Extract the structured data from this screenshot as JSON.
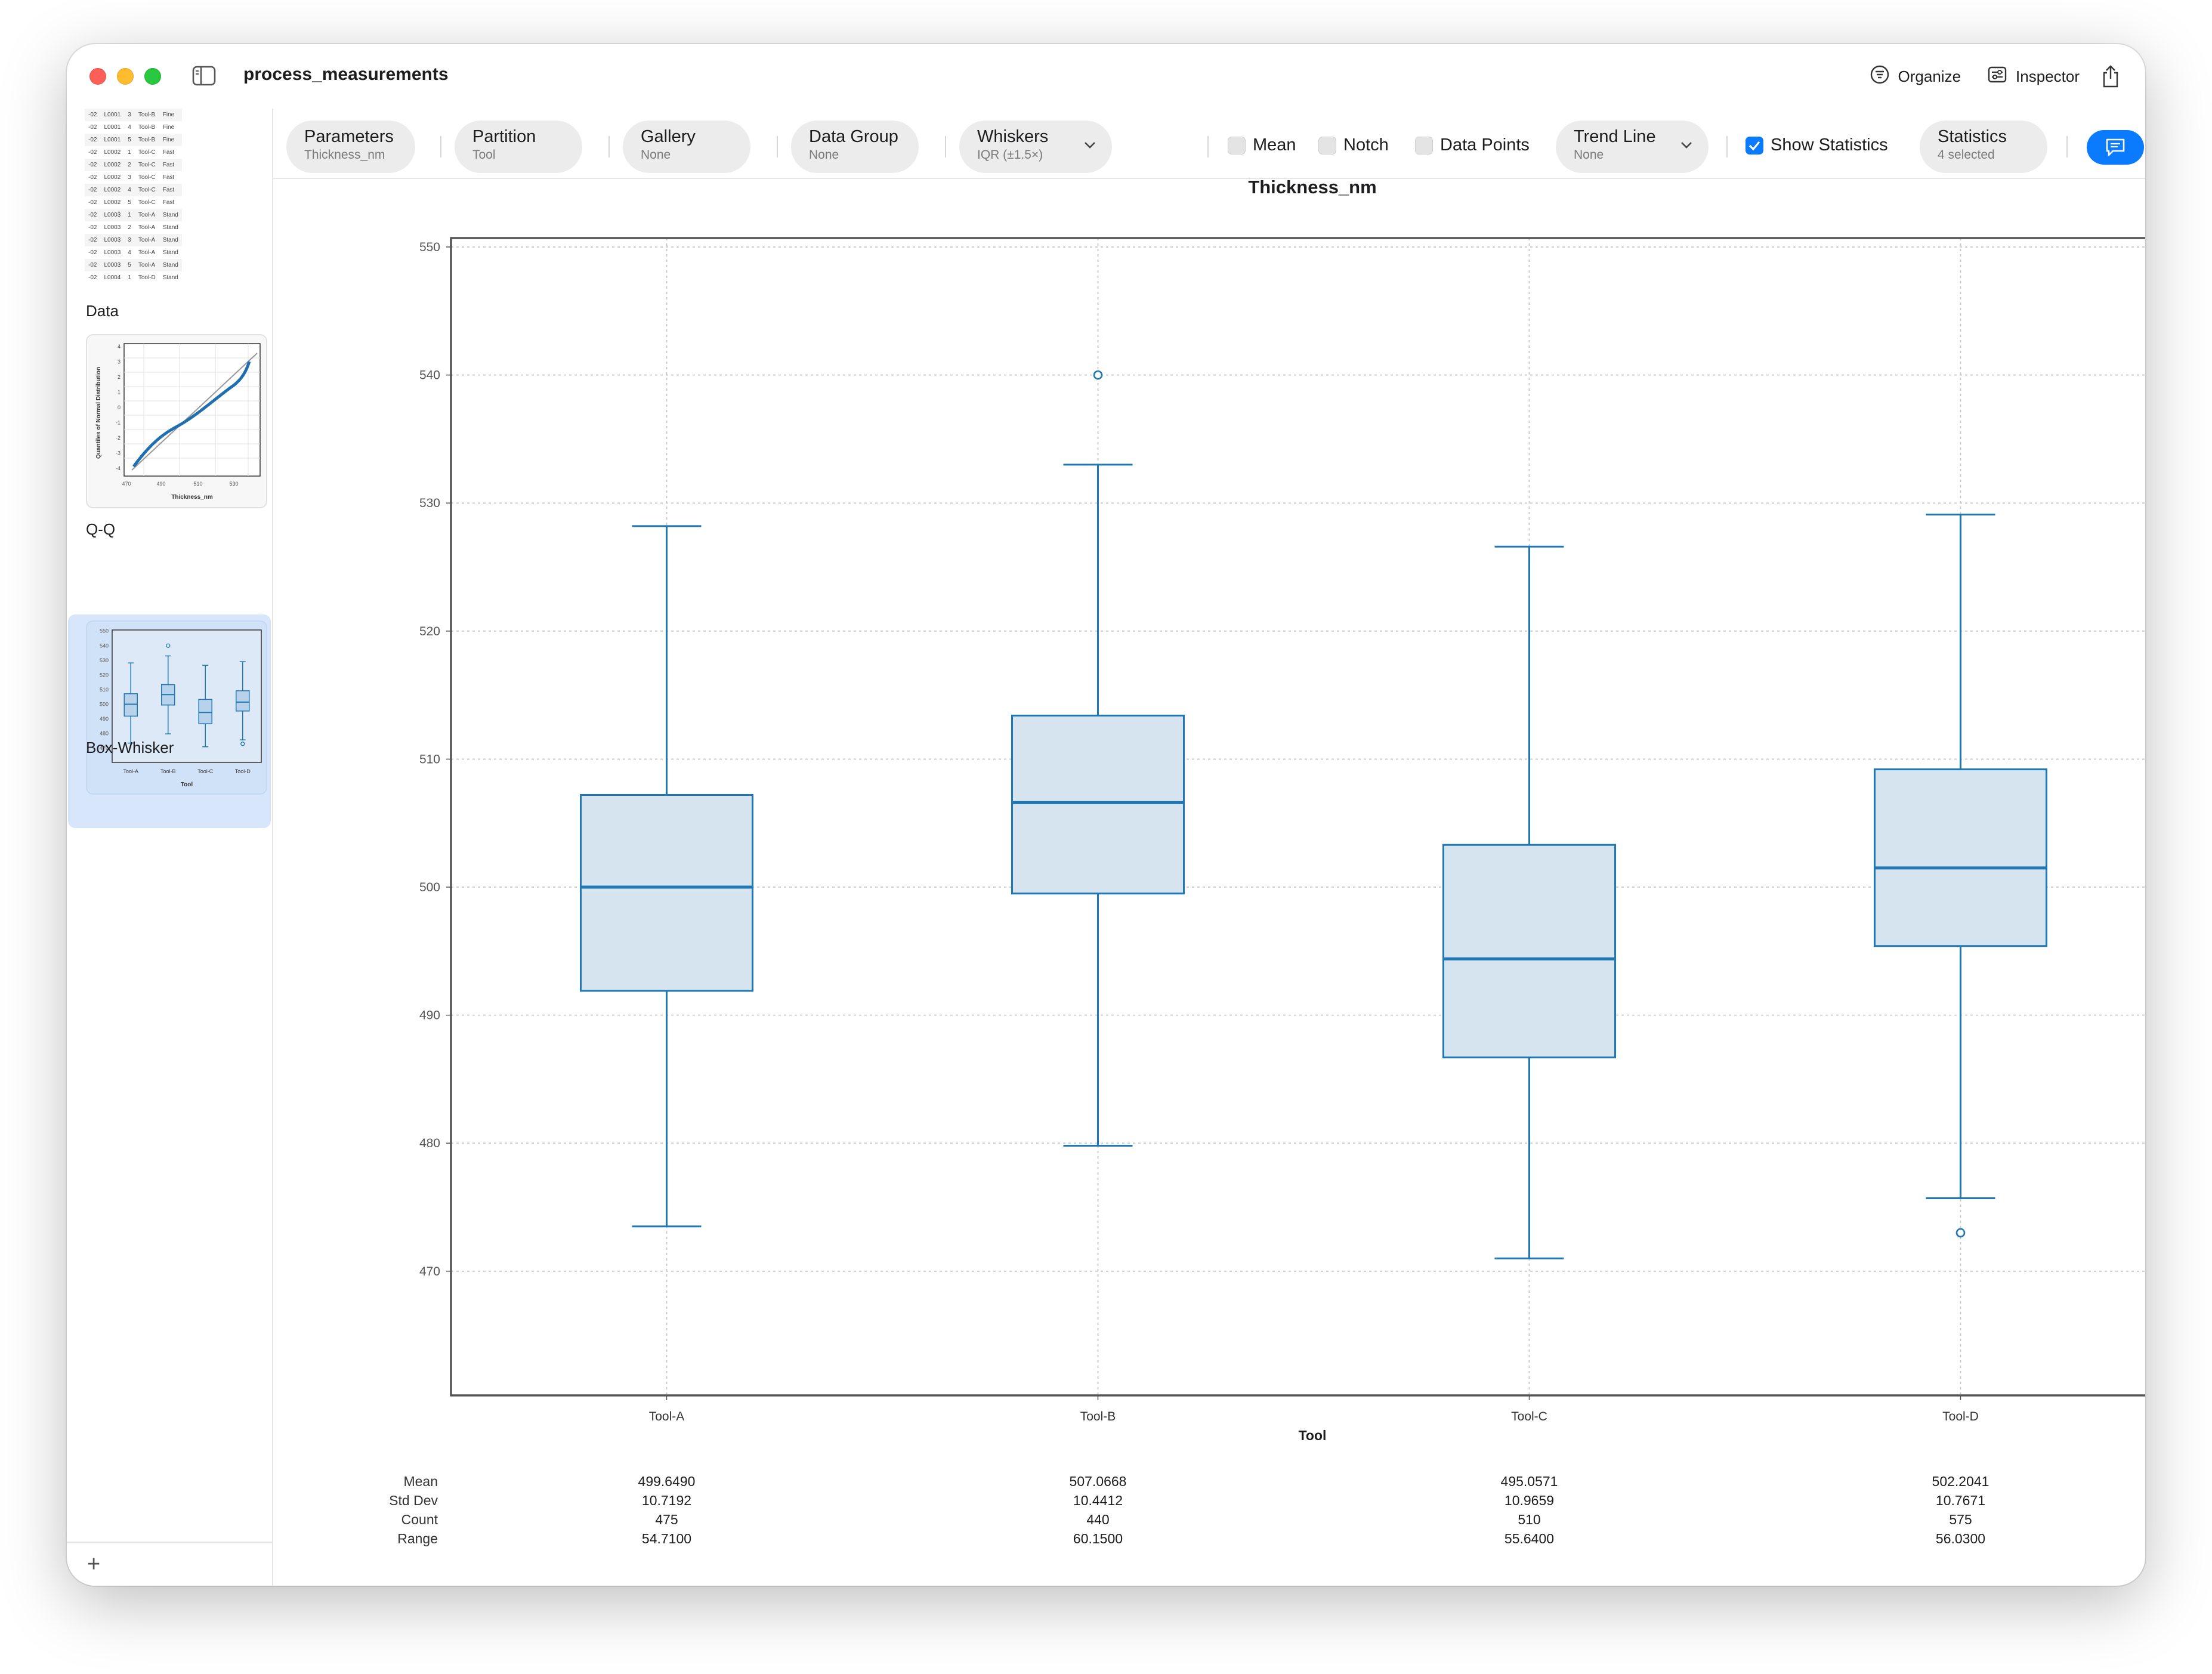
{
  "window": {
    "title": "process_measurements"
  },
  "titlebar": {
    "organize_label": "Organize",
    "inspector_label": "Inspector"
  },
  "sidebar": {
    "data_preview_rows": [
      [
        "-02",
        "L0001",
        "3",
        "Tool-B",
        "Fine"
      ],
      [
        "-02",
        "L0001",
        "4",
        "Tool-B",
        "Fine"
      ],
      [
        "-02",
        "L0001",
        "5",
        "Tool-B",
        "Fine"
      ],
      [
        "-02",
        "L0002",
        "1",
        "Tool-C",
        "Fast"
      ],
      [
        "-02",
        "L0002",
        "2",
        "Tool-C",
        "Fast"
      ],
      [
        "-02",
        "L0002",
        "3",
        "Tool-C",
        "Fast"
      ],
      [
        "-02",
        "L0002",
        "4",
        "Tool-C",
        "Fast"
      ],
      [
        "-02",
        "L0002",
        "5",
        "Tool-C",
        "Fast"
      ],
      [
        "-02",
        "L0003",
        "1",
        "Tool-A",
        "Stand"
      ],
      [
        "-02",
        "L0003",
        "2",
        "Tool-A",
        "Stand"
      ],
      [
        "-02",
        "L0003",
        "3",
        "Tool-A",
        "Stand"
      ],
      [
        "-02",
        "L0003",
        "4",
        "Tool-A",
        "Stand"
      ],
      [
        "-02",
        "L0003",
        "5",
        "Tool-A",
        "Stand"
      ],
      [
        "-02",
        "L0004",
        "1",
        "Tool-D",
        "Stand"
      ]
    ],
    "items": [
      {
        "label": "Data"
      },
      {
        "label": "Q-Q"
      },
      {
        "label": "Box-Whisker"
      }
    ],
    "add_label": "+",
    "qq_thumb": {
      "ylabel": "Quantiles of Normal Distribution",
      "xlabel": "Thickness_nm",
      "x_ticks": [
        "470",
        "490",
        "510",
        "530"
      ],
      "y_ticks": [
        "4",
        "3",
        "2",
        "1",
        "0",
        "-1",
        "-2",
        "-3",
        "-4"
      ]
    },
    "box_thumb": {
      "xlabel": "Tool",
      "y_ticks": [
        "550",
        "540",
        "530",
        "520",
        "510",
        "500",
        "490",
        "480",
        "470"
      ],
      "x_ticks": [
        "Tool-A",
        "Tool-B",
        "Tool-C",
        "Tool-D"
      ]
    }
  },
  "toolbar": {
    "parameters": {
      "label": "Parameters",
      "value": "Thickness_nm"
    },
    "partition": {
      "label": "Partition",
      "value": "Tool"
    },
    "gallery": {
      "label": "Gallery",
      "value": "None"
    },
    "data_group": {
      "label": "Data Group",
      "value": "None"
    },
    "whiskers": {
      "label": "Whiskers",
      "value": "IQR (±1.5×)"
    },
    "mean": {
      "label": "Mean",
      "checked": false
    },
    "notch": {
      "label": "Notch",
      "checked": false
    },
    "data_points": {
      "label": "Data Points",
      "checked": false
    },
    "trend_line": {
      "label": "Trend Line",
      "value": "None"
    },
    "show_statistics": {
      "label": "Show Statistics",
      "checked": true
    },
    "statistics": {
      "label": "Statistics",
      "value": "4 selected"
    }
  },
  "chart_data": {
    "type": "box",
    "title": "Thickness_nm",
    "xlabel": "Tool",
    "ylabel": "",
    "ylim": [
      460.3,
      550.7
    ],
    "y_ticks": [
      470,
      480,
      490,
      500,
      510,
      520,
      530,
      540,
      550
    ],
    "grid": true,
    "color": "#1f77b4",
    "fill": "#d6e4f0",
    "categories": [
      "Tool-A",
      "Tool-B",
      "Tool-C",
      "Tool-D"
    ],
    "boxes": [
      {
        "category": "Tool-A",
        "whisker_low": 473.5,
        "q1": 491.9,
        "median": 500.0,
        "q3": 507.2,
        "whisker_high": 528.2,
        "outliers": []
      },
      {
        "category": "Tool-B",
        "whisker_low": 479.8,
        "q1": 499.5,
        "median": 506.6,
        "q3": 513.4,
        "whisker_high": 533.0,
        "outliers": [
          540.0
        ]
      },
      {
        "category": "Tool-C",
        "whisker_low": 471.0,
        "q1": 486.7,
        "median": 494.4,
        "q3": 503.3,
        "whisker_high": 526.6,
        "outliers": []
      },
      {
        "category": "Tool-D",
        "whisker_low": 475.7,
        "q1": 495.4,
        "median": 501.5,
        "q3": 509.2,
        "whisker_high": 529.1,
        "outliers": [
          473.0
        ]
      }
    ]
  },
  "statistics_table": {
    "labels": [
      "Mean",
      "Std Dev",
      "Count",
      "Range"
    ],
    "columns": [
      {
        "category": "Tool-A",
        "values": [
          "499.6490",
          "10.7192",
          "475",
          "54.7100"
        ]
      },
      {
        "category": "Tool-B",
        "values": [
          "507.0668",
          "10.4412",
          "440",
          "60.1500"
        ]
      },
      {
        "category": "Tool-C",
        "values": [
          "495.0571",
          "10.9659",
          "510",
          "55.6400"
        ]
      },
      {
        "category": "Tool-D",
        "values": [
          "502.2041",
          "10.7671",
          "575",
          "56.0300"
        ]
      }
    ]
  }
}
